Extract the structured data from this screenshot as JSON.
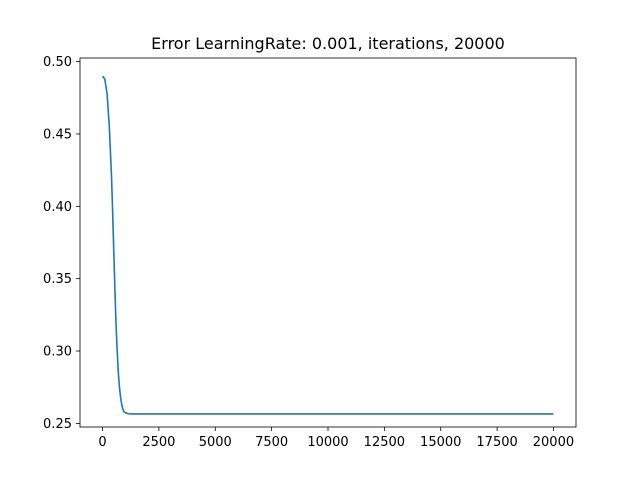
{
  "chart_data": {
    "type": "line",
    "title": "Error LearningRate: 0.001, iterations, 20000",
    "xlabel": "",
    "ylabel": "",
    "xlim": [
      -1000,
      21000
    ],
    "ylim": [
      0.2475,
      0.5025
    ],
    "grid": false,
    "line_color": "#1f77b4",
    "x_ticks": [
      0,
      2500,
      5000,
      7500,
      10000,
      12500,
      15000,
      17500,
      20000
    ],
    "x_tick_labels": [
      "0",
      "2500",
      "5000",
      "7500",
      "10000",
      "12500",
      "15000",
      "17500",
      "20000"
    ],
    "y_ticks": [
      0.25,
      0.3,
      0.35,
      0.4,
      0.45,
      0.5
    ],
    "y_tick_labels": [
      "0.25",
      "0.30",
      "0.35",
      "0.40",
      "0.45",
      "0.50"
    ],
    "series": [
      {
        "x": [
          0,
          100,
          200,
          300,
          400,
          450,
          500,
          550,
          600,
          650,
          700,
          750,
          800,
          850,
          900,
          950,
          1000,
          1100,
          1200,
          1300,
          1500,
          2000,
          3000,
          5000,
          7500,
          10000,
          12500,
          15000,
          17500,
          20000
        ],
        "y": [
          0.49,
          0.488,
          0.478,
          0.455,
          0.42,
          0.395,
          0.368,
          0.342,
          0.318,
          0.3,
          0.285,
          0.275,
          0.268,
          0.263,
          0.26,
          0.258,
          0.2575,
          0.2568,
          0.2566,
          0.2565,
          0.2565,
          0.2565,
          0.2565,
          0.2565,
          0.2565,
          0.2565,
          0.2565,
          0.2565,
          0.2565,
          0.2565
        ]
      }
    ]
  }
}
